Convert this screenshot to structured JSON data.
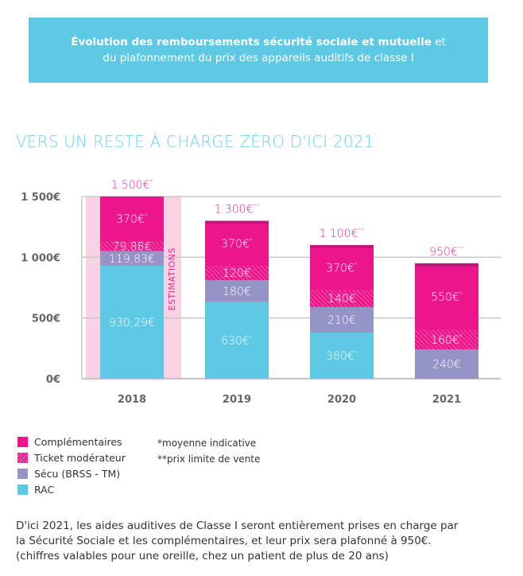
{
  "banner": {
    "bold": "Évolution des remboursements sécurité sociale et mutuelle",
    "rest1": " et",
    "line2": "du plafonnement du prix des appareils auditifs de classe I"
  },
  "heading": "VERS UN RESTE À CHARGE ZÉRO D'ICI 2021",
  "chart_data": {
    "type": "bar",
    "stacked": true,
    "categories": [
      "2018",
      "2019",
      "2020",
      "2021"
    ],
    "ylim": [
      0,
      1500
    ],
    "yticks": [
      0,
      500,
      1000,
      1500
    ],
    "ytick_labels": [
      "0€",
      "500€",
      "1 000€",
      "1 500€"
    ],
    "grid": true,
    "series": [
      {
        "name": "RAC",
        "color": "#5dc9e5",
        "values": [
          930.29,
          630,
          380,
          0
        ],
        "labels": [
          "930,29€",
          "630€",
          "380€",
          ""
        ],
        "notes": [
          "",
          "*",
          "*",
          ""
        ]
      },
      {
        "name": "Sécu (BRSS - TM)",
        "color": "#9494c6",
        "values": [
          119.83,
          180,
          210,
          240
        ],
        "labels": [
          "119,83€",
          "180€",
          "210€",
          "240€"
        ],
        "notes": [
          "",
          "",
          "",
          ""
        ]
      },
      {
        "name": "Ticket modérateur",
        "color": "#ec158b",
        "hatched": true,
        "values": [
          79.88,
          120,
          140,
          160
        ],
        "labels": [
          "79,88€",
          "120€",
          "140€",
          "160€"
        ],
        "notes": [
          "",
          "",
          "",
          "*"
        ]
      },
      {
        "name": "Complémentaires",
        "color": "#ec158b",
        "values": [
          370,
          370,
          370,
          550
        ],
        "labels": [
          "370€",
          "370€",
          "370€",
          "550€"
        ],
        "notes": [
          "*",
          "*",
          "*",
          "*"
        ]
      }
    ],
    "totals": [
      {
        "label": "1 500€",
        "note": "*"
      },
      {
        "label": "1 300€",
        "note": "**"
      },
      {
        "label": "1 100€",
        "note": "**"
      },
      {
        "label": "950€",
        "note": "**"
      }
    ],
    "annotation": "ESTIMATIONS",
    "legend": "bottom-left"
  },
  "legend": [
    {
      "label": "Complémentaires",
      "color": "#ec158b"
    },
    {
      "label": "Ticket modérateur",
      "color": "#ec158b",
      "hatched": true
    },
    {
      "label": "Sécu (BRSS - TM)",
      "color": "#9494c6"
    },
    {
      "label": "RAC",
      "color": "#5dc9e5"
    }
  ],
  "notes": [
    "*moyenne indicative",
    "**prix limite de vente"
  ],
  "footer": [
    "D'ici 2021, les aides auditives de Classe I seront entièrement prises en charge par",
    "la Sécurité Sociale et les complémentaires, et leur prix sera plafonné à 950€.",
    "(chiffres valables pour une oreille, chez un patient de plus de 20 ans)"
  ]
}
